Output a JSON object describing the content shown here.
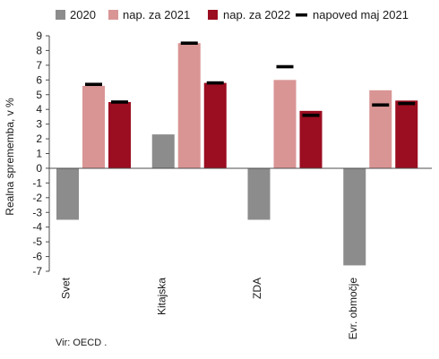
{
  "chart_data": {
    "type": "bar",
    "categories": [
      "Svet",
      "Kitajska",
      "ZDA",
      "Evr. območje"
    ],
    "series": [
      {
        "name": "2020",
        "values": [
          -3.5,
          2.3,
          -3.5,
          -6.6
        ]
      },
      {
        "name": "nap. za 2021",
        "values": [
          5.6,
          8.5,
          6.0,
          5.3
        ]
      },
      {
        "name": "nap. za 2022",
        "values": [
          4.5,
          5.8,
          3.9,
          4.6
        ]
      }
    ],
    "markers": {
      "name": "napoved maj 2021",
      "values": [
        5.7,
        8.5,
        6.9,
        4.3,
        4.5,
        5.8,
        3.6,
        4.4
      ]
    },
    "ylabel": "Realna sprememba, v %",
    "ylim": [
      -7,
      9
    ],
    "yticks": [
      "9",
      "8",
      "7",
      "6",
      "5",
      "4",
      "3",
      "2",
      "1",
      "0",
      "-1",
      "-2",
      "-3",
      "-4",
      "-5",
      "-6",
      "-7"
    ],
    "grid": false,
    "legend_position": "top",
    "colors": {
      "2020": "#8c8c8c",
      "nap. za 2021": "#d99594",
      "nap. za 2022": "#9b0d20",
      "marker": "#000000",
      "axis": "#4d4d4d"
    }
  },
  "source": "Vir: OECD ."
}
